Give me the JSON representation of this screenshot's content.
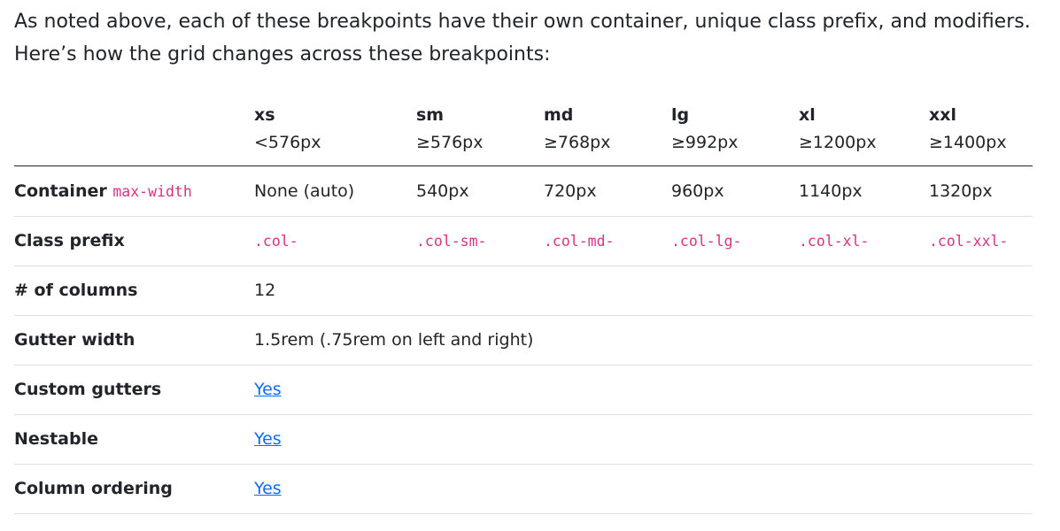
{
  "intro": {
    "line1": "As noted above, each of these breakpoints have their own container, unique class prefix, and modifiers.",
    "line2": "Here’s how the grid changes across these breakpoints:"
  },
  "table": {
    "breakpoints": [
      {
        "name": "xs",
        "size": "<576px"
      },
      {
        "name": "sm",
        "size": "≥576px"
      },
      {
        "name": "md",
        "size": "≥768px"
      },
      {
        "name": "lg",
        "size": "≥992px"
      },
      {
        "name": "xl",
        "size": "≥1200px"
      },
      {
        "name": "xxl",
        "size": "≥1400px"
      }
    ],
    "container": {
      "label": "Container",
      "label_code": "max-width",
      "values": [
        "None (auto)",
        "540px",
        "720px",
        "960px",
        "1140px",
        "1320px"
      ]
    },
    "class_prefix": {
      "label": "Class prefix",
      "values": [
        ".col-",
        ".col-sm-",
        ".col-md-",
        ".col-lg-",
        ".col-xl-",
        ".col-xxl-"
      ]
    },
    "columns": {
      "label": "# of columns",
      "value": "12"
    },
    "gutter_width": {
      "label": "Gutter width",
      "value": "1.5rem (.75rem on left and right)"
    },
    "custom_gutters": {
      "label": "Custom gutters",
      "value": "Yes"
    },
    "nestable": {
      "label": "Nestable",
      "value": "Yes"
    },
    "column_ordering": {
      "label": "Column ordering",
      "value": "Yes"
    }
  },
  "colors": {
    "text": "#212529",
    "code": "#d63384",
    "link": "#0d6efd",
    "border": "#dee2e6"
  }
}
